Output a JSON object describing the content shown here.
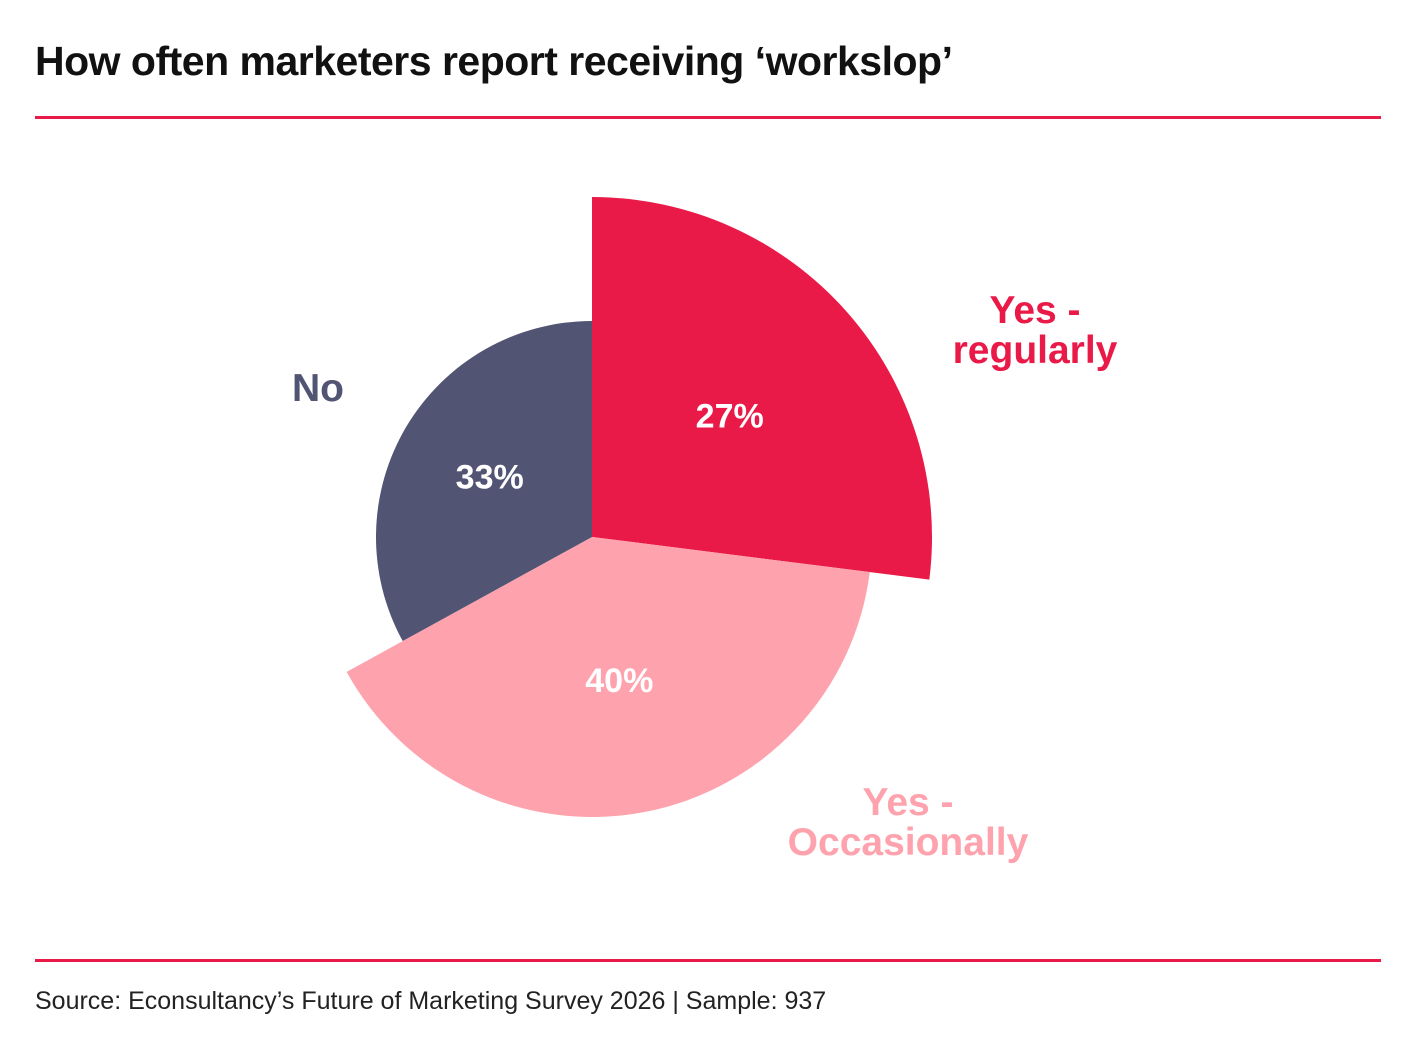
{
  "header": {
    "title": "How often marketers report receiving ‘workslop’"
  },
  "footer": {
    "source": "Source: Econsultancy’s Future of Marketing Survey 2026 | Sample: 937"
  },
  "colors": {
    "rule": "#ea1a48"
  },
  "chart_data": {
    "type": "pie",
    "legend": "none",
    "slices": [
      {
        "key": "regularly",
        "label_lines": [
          "Yes -",
          "regularly"
        ],
        "value": 27,
        "value_label": "27%",
        "color": "#ea1a48"
      },
      {
        "key": "occasionally",
        "label_lines": [
          "Yes -",
          "Occasionally"
        ],
        "value": 40,
        "value_label": "40%",
        "color": "#fea3ae"
      },
      {
        "key": "no",
        "label_lines": [
          "No"
        ],
        "value": 33,
        "value_label": "33%",
        "color": "#525474"
      }
    ]
  }
}
